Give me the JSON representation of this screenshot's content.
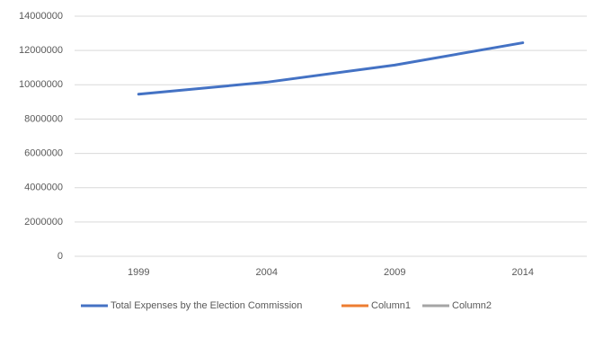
{
  "chart_data": {
    "type": "line",
    "categories": [
      "1999",
      "2004",
      "2009",
      "2014"
    ],
    "series": [
      {
        "name": "Total Expenses by the Election Commission",
        "color": "#4472c4",
        "values": [
          9450000,
          10150000,
          11150000,
          12450000
        ]
      },
      {
        "name": "Column1",
        "color": "#ed7d31",
        "values": [
          null,
          null,
          null,
          null
        ]
      },
      {
        "name": "Column2",
        "color": "#a5a5a5",
        "values": [
          null,
          null,
          null,
          null
        ]
      }
    ],
    "ylim": [
      0,
      14000000
    ],
    "yticks": [
      0,
      2000000,
      4000000,
      6000000,
      8000000,
      10000000,
      12000000,
      14000000
    ],
    "grid": true,
    "legend": "bottom"
  }
}
